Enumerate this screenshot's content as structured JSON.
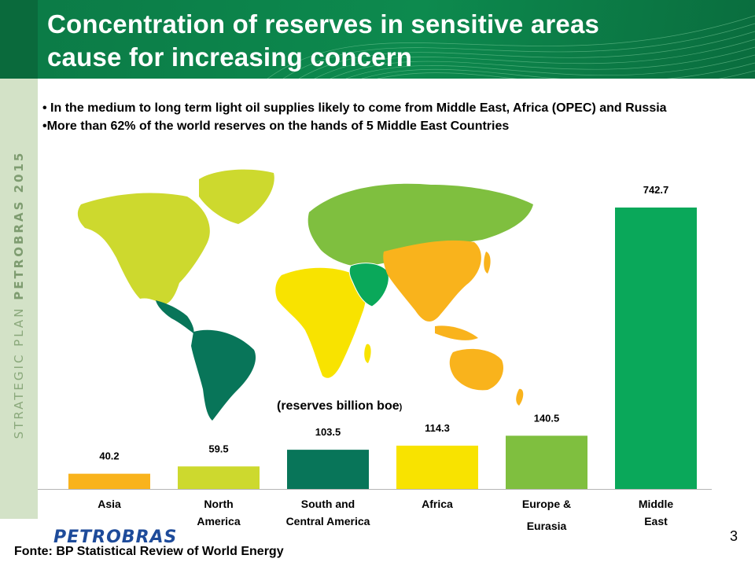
{
  "slide": {
    "title_line1": "Concentration of reserves in sensitive areas",
    "title_line2": "cause for increasing concern",
    "side_text_light": "STRATEGIC PLAN",
    "side_text_bold": "PETROBRAS 2015",
    "bullet1": "• In the medium to long term light oil supplies likely to come from Middle East, Africa (OPEC) and Russia",
    "bullet2": "•More than 62% of the world reserves on the hands of 5 Middle East Countries",
    "units_main": "(reserves billion boe",
    "units_paren": ")",
    "logo": "PETROBRAS",
    "source": "Fonte: BP Statistical Review of World Energy",
    "page_number": "3"
  },
  "colors": {
    "header": "#0d8a4e",
    "asia": "#f9b31c",
    "north_america": "#cdd92e",
    "south_central_america": "#087559",
    "africa": "#f8e300",
    "europe_eurasia": "#7fbf3f",
    "middle_east": "#0aa85a"
  },
  "chart_data": {
    "type": "bar",
    "categories": [
      "Asia",
      "North America",
      "South and Central America",
      "Africa",
      "Europe & Eurasia",
      "Middle East"
    ],
    "category_lines": [
      [
        "Asia"
      ],
      [
        "North",
        "America"
      ],
      [
        "South  and",
        "Central America"
      ],
      [
        "Africa"
      ],
      [
        "Europe  &",
        "Eurasia"
      ],
      [
        "Middle",
        "East"
      ]
    ],
    "values": [
      40.2,
      59.5,
      103.5,
      114.3,
      140.5,
      742.7
    ],
    "value_labels": [
      "40.2",
      "59.5",
      "103.5",
      "114.3",
      "140.5",
      "742.7"
    ],
    "bar_colors": [
      "#f9b31c",
      "#cdd92e",
      "#087559",
      "#f8e300",
      "#7fbf3f",
      "#0aa85a"
    ],
    "ylabel": "(reserves billion boe)",
    "ylim": [
      0,
      742.7
    ],
    "grid": false,
    "legend": "none"
  }
}
